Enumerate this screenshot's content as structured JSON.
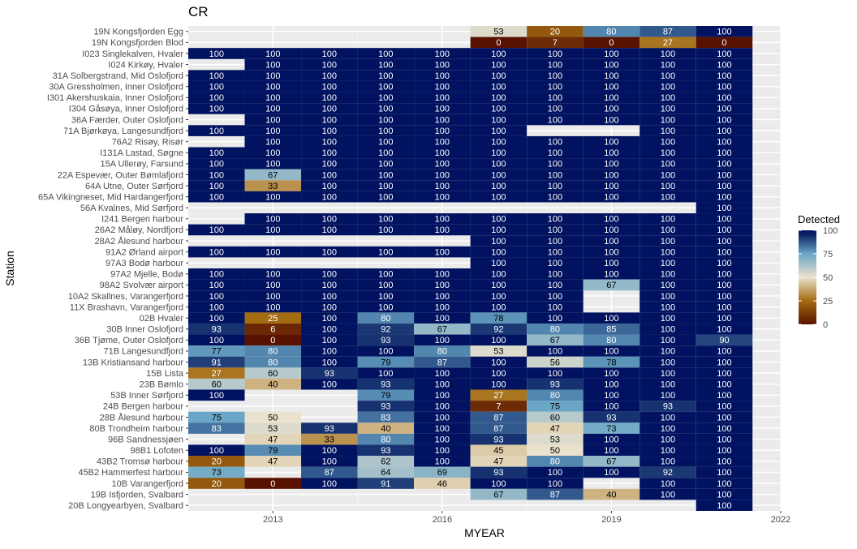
{
  "chart_data": {
    "type": "heatmap",
    "title": "CR",
    "xlabel": "MYEAR",
    "ylabel": "Station",
    "x_range": [
      2011.5,
      2022
    ],
    "x_ticks": [
      2013,
      2016,
      2019,
      2022
    ],
    "years": [
      2012,
      2013,
      2014,
      2015,
      2016,
      2017,
      2018,
      2019,
      2020,
      2021
    ],
    "grid": true,
    "legend": {
      "title": "Detected",
      "position": "right",
      "ticks": [
        0,
        25,
        50,
        75,
        100
      ],
      "colors": [
        "#5a1200",
        "#a36b12",
        "#ebe2cd",
        "#6aa6c7",
        "#0d2566",
        "#011360"
      ]
    },
    "stations": [
      {
        "name": "19N Kongsfjorden Egg",
        "values": [
          null,
          null,
          null,
          null,
          null,
          53,
          20,
          80,
          87,
          100
        ]
      },
      {
        "name": "19N Kongsfjorden Blod",
        "values": [
          null,
          null,
          null,
          null,
          null,
          0,
          7,
          0,
          27,
          0
        ]
      },
      {
        "name": "I023 Singlekalven, Hvaler",
        "values": [
          100,
          100,
          100,
          100,
          100,
          100,
          100,
          100,
          100,
          100
        ]
      },
      {
        "name": "I024 Kirkøy, Hvaler",
        "values": [
          null,
          100,
          100,
          100,
          100,
          100,
          100,
          100,
          100,
          100
        ]
      },
      {
        "name": "31A Solbergstrand, Mid Oslofjord",
        "values": [
          100,
          100,
          100,
          100,
          100,
          100,
          100,
          100,
          100,
          100
        ]
      },
      {
        "name": "30A Gressholmen, Inner Oslofjord",
        "values": [
          100,
          100,
          100,
          100,
          100,
          100,
          100,
          100,
          100,
          100
        ]
      },
      {
        "name": "I301 Akershuskaia, Inner Oslofjord",
        "values": [
          100,
          100,
          100,
          100,
          100,
          100,
          100,
          100,
          100,
          100
        ]
      },
      {
        "name": "I304 Gåsøya, Inner Oslofjord",
        "values": [
          100,
          100,
          100,
          100,
          100,
          100,
          100,
          100,
          100,
          100
        ]
      },
      {
        "name": "36A Færder, Outer Oslofjord",
        "values": [
          null,
          100,
          100,
          100,
          100,
          100,
          100,
          100,
          100,
          100
        ]
      },
      {
        "name": "71A Bjørkøya, Langesundfjord",
        "values": [
          100,
          100,
          100,
          100,
          100,
          100,
          null,
          null,
          100,
          100
        ]
      },
      {
        "name": "76A2 Risøy, Risør",
        "values": [
          null,
          100,
          100,
          100,
          100,
          100,
          100,
          100,
          100,
          100
        ]
      },
      {
        "name": "I131A Lastad, Søgne",
        "values": [
          100,
          100,
          100,
          100,
          100,
          100,
          100,
          100,
          100,
          100
        ]
      },
      {
        "name": "15A Ullerøy, Farsund",
        "values": [
          100,
          100,
          100,
          100,
          100,
          100,
          100,
          100,
          100,
          100
        ]
      },
      {
        "name": "22A Espevær, Outer Bømlafjord",
        "values": [
          100,
          67,
          100,
          100,
          100,
          100,
          100,
          100,
          100,
          100
        ]
      },
      {
        "name": "64A Utne, Outer Sørfjord",
        "values": [
          100,
          33,
          100,
          100,
          100,
          100,
          100,
          100,
          100,
          100
        ]
      },
      {
        "name": "65A Vikingneset, Mid Hardangerfjord",
        "values": [
          100,
          100,
          100,
          100,
          100,
          100,
          100,
          100,
          100,
          100
        ]
      },
      {
        "name": "56A Kvalnes, Mid Sørfjord",
        "values": [
          null,
          null,
          null,
          null,
          null,
          null,
          null,
          null,
          null,
          100
        ]
      },
      {
        "name": "I241 Bergen harbour",
        "values": [
          null,
          100,
          100,
          100,
          100,
          100,
          100,
          100,
          100,
          100
        ]
      },
      {
        "name": "26A2 Måløy, Nordfjord",
        "values": [
          100,
          100,
          100,
          100,
          100,
          100,
          100,
          100,
          100,
          100
        ]
      },
      {
        "name": "28A2 Ålesund harbour",
        "values": [
          null,
          null,
          null,
          null,
          null,
          100,
          100,
          100,
          100,
          100
        ]
      },
      {
        "name": "91A2 Ørland airport",
        "values": [
          100,
          100,
          100,
          100,
          100,
          100,
          100,
          100,
          100,
          100
        ]
      },
      {
        "name": "97A3 Bodø harbour",
        "values": [
          null,
          null,
          null,
          null,
          null,
          100,
          100,
          100,
          100,
          100
        ]
      },
      {
        "name": "97A2 Mjelle, Bodø",
        "values": [
          100,
          100,
          100,
          100,
          100,
          100,
          100,
          100,
          100,
          100
        ]
      },
      {
        "name": "98A2 Svolvær airport",
        "values": [
          100,
          100,
          100,
          100,
          100,
          100,
          100,
          67,
          100,
          100
        ]
      },
      {
        "name": "10A2 Skallnes, Varangerfjord",
        "values": [
          100,
          100,
          100,
          100,
          100,
          100,
          100,
          null,
          100,
          100
        ]
      },
      {
        "name": "11X Brashavn, Varangerfjord",
        "values": [
          100,
          100,
          100,
          100,
          100,
          100,
          100,
          null,
          100,
          100
        ]
      },
      {
        "name": "02B Hvaler",
        "values": [
          100,
          25,
          100,
          80,
          100,
          78,
          100,
          100,
          100,
          100
        ]
      },
      {
        "name": "30B Inner Oslofjord",
        "values": [
          93,
          6,
          100,
          92,
          67,
          92,
          80,
          85,
          100,
          100
        ]
      },
      {
        "name": "36B Tjøme, Outer Oslofjord",
        "values": [
          100,
          0,
          100,
          93,
          100,
          100,
          67,
          80,
          100,
          90
        ]
      },
      {
        "name": "71B Langesundfjord",
        "values": [
          77,
          80,
          100,
          100,
          80,
          53,
          100,
          100,
          100,
          100
        ]
      },
      {
        "name": "13B Kristiansand harbour",
        "values": [
          91,
          80,
          100,
          79,
          87,
          100,
          56,
          78,
          100,
          100
        ]
      },
      {
        "name": "15B Lista",
        "values": [
          27,
          60,
          93,
          100,
          100,
          100,
          100,
          100,
          100,
          100
        ]
      },
      {
        "name": "23B Bømlo",
        "values": [
          60,
          40,
          100,
          93,
          100,
          100,
          93,
          100,
          100,
          100
        ]
      },
      {
        "name": "53B Inner Sørfjord",
        "values": [
          100,
          null,
          null,
          79,
          100,
          27,
          80,
          100,
          100,
          100
        ]
      },
      {
        "name": "24B Bergen harbour",
        "values": [
          null,
          null,
          null,
          93,
          100,
          7,
          75,
          100,
          93,
          100
        ]
      },
      {
        "name": "28B Ålesund harbour",
        "values": [
          75,
          50,
          null,
          83,
          100,
          87,
          60,
          93,
          100,
          100
        ]
      },
      {
        "name": "80B Trondheim harbour",
        "values": [
          83,
          53,
          93,
          40,
          100,
          87,
          47,
          73,
          100,
          100
        ]
      },
      {
        "name": "96B Sandnessjøen",
        "values": [
          null,
          47,
          33,
          80,
          100,
          93,
          53,
          100,
          100,
          100
        ]
      },
      {
        "name": "98B1 Lofoten",
        "values": [
          100,
          79,
          100,
          93,
          100,
          45,
          50,
          100,
          100,
          100
        ]
      },
      {
        "name": "43B2 Tromsø harbour",
        "values": [
          20,
          47,
          100,
          62,
          100,
          47,
          80,
          67,
          100,
          100
        ]
      },
      {
        "name": "45B2 Hammerfest harbour",
        "values": [
          73,
          null,
          87,
          64,
          69,
          93,
          100,
          100,
          92,
          100
        ]
      },
      {
        "name": "10B Varangerfjord",
        "values": [
          20,
          0,
          100,
          91,
          46,
          100,
          100,
          null,
          100,
          100
        ]
      },
      {
        "name": "19B Isfjorden, Svalbard",
        "values": [
          null,
          null,
          null,
          null,
          null,
          67,
          87,
          40,
          100,
          100
        ]
      },
      {
        "name": "20B Longyearbyen, Svalbard",
        "values": [
          null,
          null,
          null,
          null,
          null,
          null,
          null,
          null,
          null,
          100
        ]
      }
    ]
  }
}
